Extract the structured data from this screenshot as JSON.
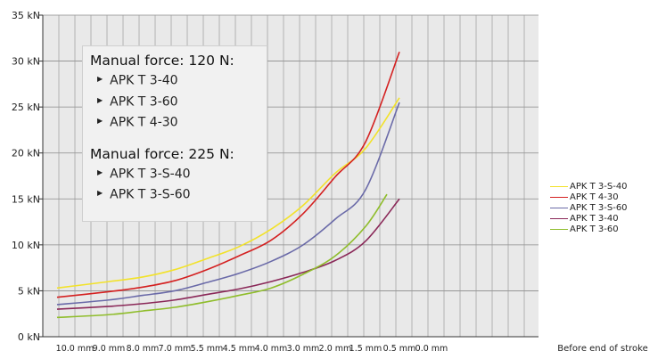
{
  "chart_data": {
    "type": "line",
    "title": "",
    "xlabel": "Before end of stroke",
    "ylabel": "",
    "ylim": [
      0,
      35
    ],
    "y_ticks": [
      "0 kN",
      "5 kN",
      "10 kN",
      "15 kN",
      "20 kN",
      "25 kN",
      "30 kN",
      "35 kN"
    ],
    "x_ticks": [
      "10.0 mm",
      "9.0 mm",
      "8.0 mm",
      "7.0 mm",
      "5.5 mm",
      "4.5 mm",
      "4.0 mm",
      "3.0 mm",
      "2.0 mm",
      "1.5 mm",
      "0.5 mm",
      "0.0 mm"
    ],
    "grid": true,
    "legend_placement": "right",
    "series": [
      {
        "name": "APK T 3-S-40",
        "color": "#f2e22a",
        "x": [
          10.0,
          9.0,
          8.0,
          7.0,
          5.5,
          4.5,
          4.0,
          3.0,
          2.0,
          1.5,
          0.5
        ],
        "y": [
          5.3,
          6.0,
          6.5,
          7.3,
          8.5,
          9.8,
          11.7,
          14.3,
          17.8,
          20.5,
          26.0
        ]
      },
      {
        "name": "APK T 4-30",
        "color": "#d42020",
        "x": [
          10.0,
          9.0,
          8.0,
          7.0,
          5.5,
          4.5,
          4.0,
          3.0,
          2.0,
          1.5,
          0.5
        ],
        "y": [
          4.3,
          4.9,
          5.4,
          6.1,
          7.3,
          8.8,
          10.5,
          13.4,
          17.4,
          21.2,
          31.0
        ]
      },
      {
        "name": "APK T 3-S-60",
        "color": "#6a6aa8",
        "x": [
          10.0,
          9.0,
          8.0,
          7.0,
          5.5,
          4.5,
          4.0,
          3.0,
          2.0,
          1.5,
          0.5
        ],
        "y": [
          3.5,
          4.0,
          4.5,
          5.0,
          5.9,
          6.9,
          8.2,
          10.0,
          12.8,
          16.0,
          25.5
        ]
      },
      {
        "name": "APK T 3-40",
        "color": "#8a2858",
        "x": [
          10.0,
          9.0,
          8.0,
          7.0,
          5.5,
          4.5,
          4.0,
          3.0,
          2.0,
          1.5,
          0.5
        ],
        "y": [
          3.0,
          3.3,
          3.6,
          4.0,
          4.6,
          5.2,
          6.0,
          7.0,
          8.3,
          10.4,
          15.0
        ]
      },
      {
        "name": "APK T 3-60",
        "color": "#8fbd2b",
        "x": [
          10.0,
          9.0,
          8.0,
          7.0,
          5.5,
          4.5,
          4.0,
          3.0,
          2.0,
          1.5,
          0.5
        ],
        "y": [
          2.1,
          2.4,
          2.8,
          3.2,
          3.8,
          4.5,
          5.3,
          6.8,
          8.8,
          12.0,
          15.5
        ]
      }
    ]
  },
  "callout": {
    "group1_title": "Manual force: 120 N:",
    "group1_items": [
      "APK T 3-40",
      "APK T 3-60",
      "APK T 4-30"
    ],
    "group2_title": "Manual force: 225 N:",
    "group2_items": [
      "APK T 3-S-40",
      "APK T 3-S-60"
    ],
    "bullet": "▶"
  }
}
